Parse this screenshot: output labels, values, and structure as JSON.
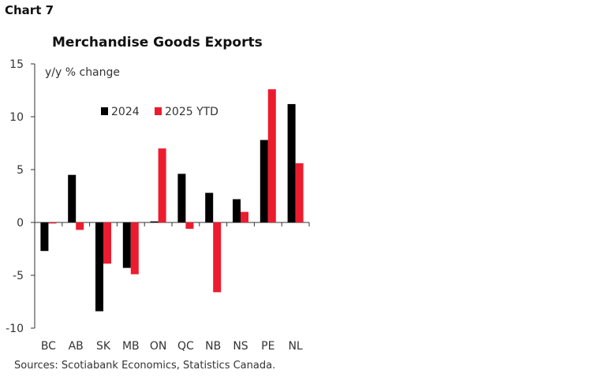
{
  "header": {
    "chart_number": "Chart 7"
  },
  "footer": {
    "sources": "Sources: Scotiabank Economics, Statistics Canada."
  },
  "chart_data": {
    "type": "bar",
    "title": "Merchandise Goods Exports",
    "ylabel": "y/y % change",
    "xlabel": "",
    "categories": [
      "BC",
      "AB",
      "SK",
      "MB",
      "ON",
      "QC",
      "NB",
      "NS",
      "PE",
      "NL"
    ],
    "series": [
      {
        "name": "2024",
        "color": "#000000",
        "values": [
          -2.7,
          4.5,
          -8.4,
          -4.3,
          0.1,
          4.6,
          2.8,
          2.2,
          7.8,
          11.2
        ]
      },
      {
        "name": "2025 YTD",
        "color": "#ec1c2e",
        "values": [
          -0.1,
          -0.7,
          -3.9,
          -4.9,
          7.0,
          -0.6,
          -6.6,
          1.0,
          12.6,
          5.6
        ]
      }
    ],
    "ylim": [
      -10,
      15
    ],
    "yticks": [
      "-10",
      "-5",
      "0",
      "5",
      "10",
      "15"
    ],
    "grid": false,
    "legend_position": "top-center"
  }
}
